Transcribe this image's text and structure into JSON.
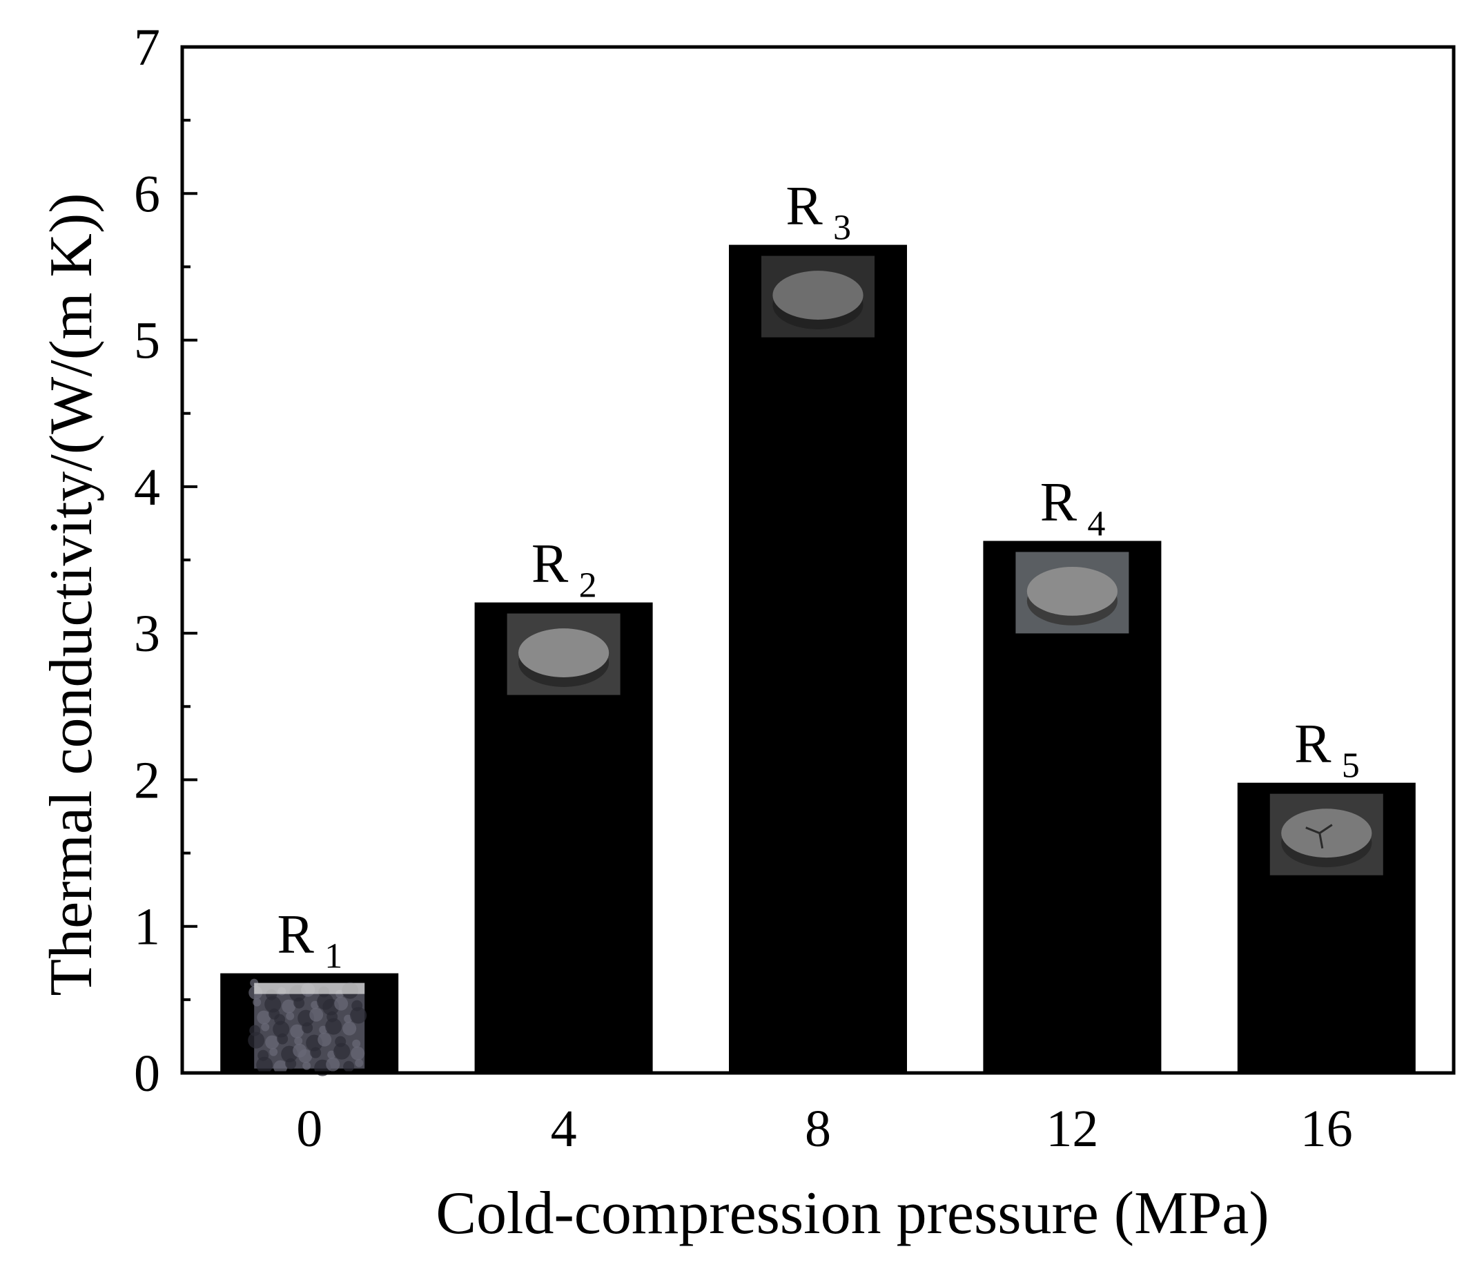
{
  "chart_data": {
    "type": "bar",
    "title": "",
    "xlabel": "Cold-compression pressure (MPa)",
    "ylabel": "Thermal conductivity/(W/(m K))",
    "categories": [
      "0",
      "4",
      "8",
      "12",
      "16"
    ],
    "series": [
      {
        "values": [
          0.68,
          3.21,
          5.65,
          3.63,
          1.98
        ]
      }
    ],
    "bar_labels": [
      {
        "main": "R",
        "sub": "1"
      },
      {
        "main": "R",
        "sub": "2"
      },
      {
        "main": "R",
        "sub": "3"
      },
      {
        "main": "R",
        "sub": "4"
      },
      {
        "main": "R",
        "sub": "5"
      }
    ],
    "ylim": [
      0,
      7
    ],
    "yticks": [
      "0",
      "1",
      "2",
      "3",
      "4",
      "5",
      "6",
      "7"
    ],
    "grid": false,
    "legend": "none",
    "bar_color": "#000000",
    "sample_photo_tones": [
      {
        "base": "#4a4a55",
        "disc": "#3a3a45",
        "face": "#5a5a66"
      },
      {
        "base": "#3f3f3f",
        "disc": "#2a2a2a",
        "face": "#8a8a8a"
      },
      {
        "base": "#2e2e2e",
        "disc": "#222222",
        "face": "#6e6e6e"
      },
      {
        "base": "#5a5e62",
        "disc": "#3c3c3c",
        "face": "#8c8c8c"
      },
      {
        "base": "#3a3a3a",
        "disc": "#2a2a2a",
        "face": "#7a7a7a"
      }
    ]
  }
}
